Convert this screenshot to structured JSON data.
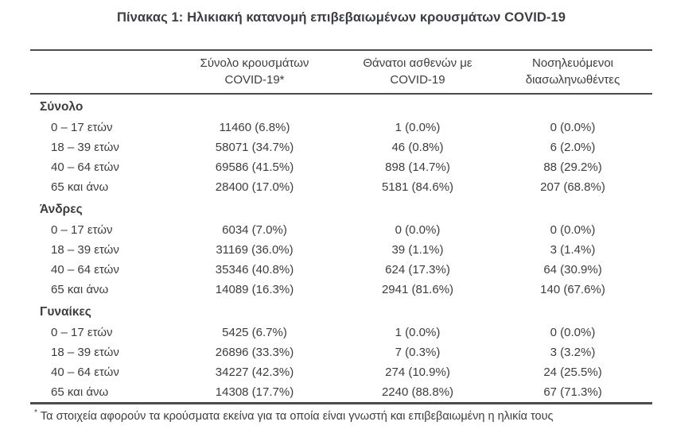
{
  "title": "Πίνακας 1: Ηλικιακή κατανομή επιβεβαιωμένων κρουσμάτων COVID-19",
  "table": {
    "headers": [
      {
        "line1": "Σύνολο κρουσμάτων",
        "line2": "COVID-19*"
      },
      {
        "line1": "Θάνατοι ασθενών με",
        "line2": "COVID-19"
      },
      {
        "line1": "Νοσηλευόμενοι",
        "line2": "διασωληνωθέντες"
      }
    ],
    "sections": [
      {
        "label": "Σύνολο",
        "rows": [
          {
            "age": "0 – 17 ετών",
            "cases": "11460 (6.8%)",
            "deaths": "1 (0.0%)",
            "intubated": "0 (0.0%)"
          },
          {
            "age": "18 – 39 ετών",
            "cases": "58071 (34.7%)",
            "deaths": "46 (0.8%)",
            "intubated": "6 (2.0%)"
          },
          {
            "age": "40 – 64 ετών",
            "cases": "69586 (41.5%)",
            "deaths": "898 (14.7%)",
            "intubated": "88 (29.2%)"
          },
          {
            "age": "65 και άνω",
            "cases": "28400 (17.0%)",
            "deaths": "5181 (84.6%)",
            "intubated": "207 (68.8%)"
          }
        ]
      },
      {
        "label": "Άνδρες",
        "rows": [
          {
            "age": "0 – 17 ετών",
            "cases": "6034 (7.0%)",
            "deaths": "0 (0.0%)",
            "intubated": "0 (0.0%)"
          },
          {
            "age": "18 – 39 ετών",
            "cases": "31169 (36.0%)",
            "deaths": "39 (1.1%)",
            "intubated": "3 (1.4%)"
          },
          {
            "age": "40 – 64 ετών",
            "cases": "35346 (40.8%)",
            "deaths": "624 (17.3%)",
            "intubated": "64 (30.9%)"
          },
          {
            "age": "65 και άνω",
            "cases": "14089 (16.3%)",
            "deaths": "2941 (81.6%)",
            "intubated": "140 (67.6%)"
          }
        ]
      },
      {
        "label": "Γυναίκες",
        "rows": [
          {
            "age": "0 – 17 ετών",
            "cases": "5425 (6.7%)",
            "deaths": "1 (0.0%)",
            "intubated": "0 (0.0%)"
          },
          {
            "age": "18 – 39 ετών",
            "cases": "26896 (33.3%)",
            "deaths": "7 (0.3%)",
            "intubated": "3 (3.2%)"
          },
          {
            "age": "40 – 64 ετών",
            "cases": "34227 (42.3%)",
            "deaths": "274 (10.9%)",
            "intubated": "24 (25.5%)"
          },
          {
            "age": "65 και άνω",
            "cases": "14308 (17.7%)",
            "deaths": "2240 (88.8%)",
            "intubated": "67 (71.3%)"
          }
        ]
      }
    ]
  },
  "footnote": {
    "marker": "*",
    "text": "Τα στοιχεία αφορούν τα κρούσματα εκείνα για τα οποία είναι γνωστή και επιβεβαιωμένη η ηλικία τους"
  }
}
